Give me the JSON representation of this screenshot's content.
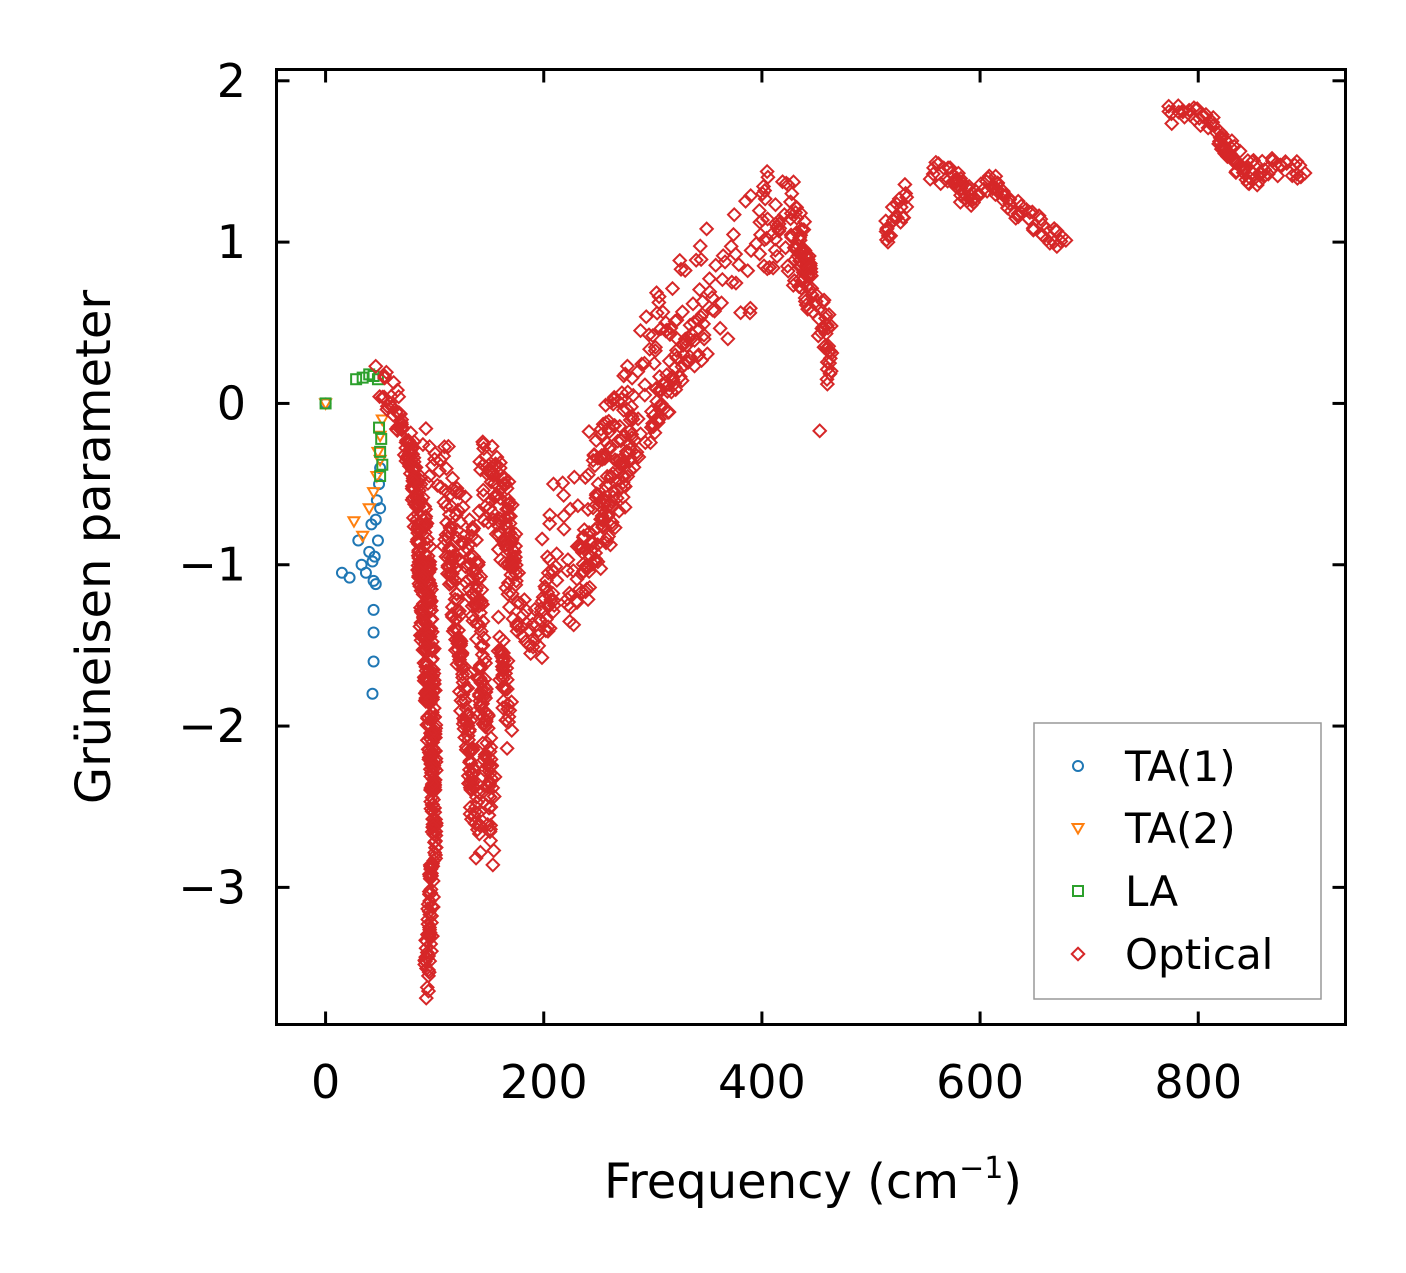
{
  "chart_data": {
    "type": "scatter",
    "title": "",
    "xlabel": "Frequency (cm",
    "xlabel_sup": "−1",
    "xlabel_end": ")",
    "ylabel": "Grüneisen parameter",
    "xlim": [
      -45,
      935
    ],
    "ylim": [
      -3.85,
      2.07
    ],
    "xticks": [
      0,
      200,
      400,
      600,
      800
    ],
    "xtick_labels": [
      "0",
      "200",
      "400",
      "600",
      "800"
    ],
    "yticks": [
      -3,
      -2,
      -1,
      0,
      1,
      2
    ],
    "ytick_labels": [
      "−3",
      "−2",
      "−1",
      "0",
      "1",
      "2"
    ],
    "legend_position": "lower-right",
    "series": [
      {
        "name": "TA(1)",
        "marker": "circle",
        "color": "#1f77b4",
        "points": [
          [
            0,
            0
          ],
          [
            15,
            -1.05
          ],
          [
            22,
            -1.08
          ],
          [
            30,
            -0.85
          ],
          [
            33,
            -1.0
          ],
          [
            37,
            -1.05
          ],
          [
            40,
            -0.92
          ],
          [
            42,
            -0.75
          ],
          [
            43,
            -0.98
          ],
          [
            44,
            -1.1
          ],
          [
            44,
            -1.28
          ],
          [
            44,
            -1.42
          ],
          [
            44,
            -1.6
          ],
          [
            43,
            -1.8
          ],
          [
            45,
            -0.95
          ],
          [
            46,
            -0.72
          ],
          [
            46,
            -1.12
          ],
          [
            47,
            -0.6
          ],
          [
            48,
            -0.85
          ],
          [
            49,
            -0.5
          ],
          [
            50,
            -0.4
          ],
          [
            50,
            -0.65
          ]
        ]
      },
      {
        "name": "TA(2)",
        "marker": "triangle-down",
        "color": "#ff7f0e",
        "points": [
          [
            0,
            0
          ],
          [
            26,
            -0.73
          ],
          [
            34,
            -0.82
          ],
          [
            40,
            -0.65
          ],
          [
            44,
            -0.55
          ],
          [
            47,
            -0.45
          ],
          [
            48,
            -0.3
          ],
          [
            50,
            -0.2
          ],
          [
            50,
            -0.35
          ],
          [
            52,
            -0.1
          ]
        ]
      },
      {
        "name": "LA",
        "marker": "square",
        "color": "#2ca02c",
        "points": [
          [
            0,
            0
          ],
          [
            28,
            0.15
          ],
          [
            34,
            0.16
          ],
          [
            40,
            0.18
          ],
          [
            44,
            0.17
          ],
          [
            48,
            0.15
          ],
          [
            49,
            -0.15
          ],
          [
            50,
            -0.3
          ],
          [
            50,
            -0.45
          ],
          [
            51,
            -0.22
          ],
          [
            52,
            -0.38
          ]
        ]
      },
      {
        "name": "Optical",
        "marker": "diamond",
        "color": "#d62728",
        "segments": [
          {
            "path": [
              [
                48,
                0.15
              ],
              [
                52,
                0.15
              ],
              [
                62,
                0.0
              ],
              [
                72,
                -0.18
              ],
              [
                82,
                -0.42
              ],
              [
                92,
                -0.8
              ],
              [
                97,
                -1.45
              ],
              [
                99,
                -2.1
              ],
              [
                99,
                -2.8
              ],
              [
                95,
                -3.3
              ],
              [
                92,
                -3.62
              ]
            ],
            "width": 0.12
          },
          {
            "path": [
              [
                75,
                -0.25
              ],
              [
                85,
                -0.8
              ],
              [
                90,
                -1.45
              ],
              [
                95,
                -2.0
              ],
              [
                100,
                -2.55
              ]
            ],
            "width": 0.14
          },
          {
            "path": [
              [
                90,
                -0.4
              ],
              [
                105,
                -0.45
              ],
              [
                118,
                -0.6
              ],
              [
                130,
                -0.85
              ],
              [
                140,
                -1.3
              ],
              [
                145,
                -1.9
              ],
              [
                150,
                -2.4
              ],
              [
                155,
                -2.65
              ]
            ],
            "width": 0.28
          },
          {
            "path": [
              [
                110,
                -0.7
              ],
              [
                120,
                -1.3
              ],
              [
                128,
                -1.9
              ],
              [
                135,
                -2.4
              ],
              [
                142,
                -2.7
              ]
            ],
            "width": 0.2
          },
          {
            "path": [
              [
                140,
                -0.5
              ],
              [
                150,
                -0.6
              ],
              [
                160,
                -0.75
              ],
              [
                170,
                -1.05
              ],
              [
                180,
                -1.3
              ],
              [
                195,
                -1.45
              ],
              [
                210,
                -1.05
              ]
            ],
            "width": 0.22
          },
          {
            "path": [
              [
                145,
                -0.3
              ],
              [
                155,
                -0.45
              ],
              [
                165,
                -0.6
              ],
              [
                175,
                -1.0
              ]
            ],
            "width": 0.15
          },
          {
            "path": [
              [
                160,
                -1.5
              ],
              [
                165,
                -1.8
              ],
              [
                170,
                -2.0
              ]
            ],
            "width": 0.2
          },
          {
            "path": [
              [
                200,
                -0.75
              ],
              [
                215,
                -0.8
              ],
              [
                225,
                -0.85
              ],
              [
                235,
                -0.9
              ],
              [
                250,
                -0.7
              ],
              [
                260,
                -0.5
              ],
              [
                270,
                -0.25
              ],
              [
                280,
                -0.05
              ],
              [
                290,
                0.1
              ],
              [
                305,
                0.3
              ],
              [
                320,
                0.45
              ],
              [
                335,
                0.58
              ],
              [
                350,
                0.7
              ],
              [
                365,
                0.8
              ],
              [
                375,
                0.85
              ],
              [
                385,
                0.9
              ],
              [
                395,
                0.95
              ]
            ],
            "width": 0.42
          },
          {
            "path": [
              [
                220,
                -1.2
              ],
              [
                235,
                -1.05
              ],
              [
                250,
                -0.8
              ],
              [
                262,
                -0.6
              ],
              [
                272,
                -0.45
              ],
              [
                282,
                -0.2
              ]
            ],
            "width": 0.25
          },
          {
            "path": [
              [
                240,
                -0.3
              ],
              [
                255,
                -0.2
              ],
              [
                262,
                -0.1
              ]
            ],
            "width": 0.18
          },
          {
            "path": [
              [
                300,
                -0.15
              ],
              [
                310,
                0.05
              ],
              [
                320,
                0.2
              ],
              [
                330,
                0.32
              ],
              [
                340,
                0.4
              ],
              [
                350,
                0.45
              ]
            ],
            "width": 0.18
          },
          {
            "path": [
              [
                398,
                1.1
              ],
              [
                405,
                1.22
              ],
              [
                412,
                1.26
              ],
              [
                420,
                1.25
              ],
              [
                428,
                1.18
              ],
              [
                435,
                1.05
              ],
              [
                440,
                0.9
              ]
            ],
            "width": 0.22
          },
          {
            "path": [
              [
                400,
                1.0
              ],
              [
                412,
                0.95
              ],
              [
                424,
                0.95
              ],
              [
                435,
                0.85
              ],
              [
                443,
                0.7
              ],
              [
                450,
                0.6
              ],
              [
                458,
                0.5
              ],
              [
                462,
                0.35
              ],
              [
                460,
                0.2
              ]
            ],
            "width": 0.17
          },
          {
            "path": [
              [
                430,
                0.95
              ],
              [
                440,
                0.85
              ],
              [
                447,
                0.7
              ]
            ],
            "width": 0.12
          },
          {
            "path": [
              [
                512,
                1.02
              ],
              [
                520,
                1.12
              ],
              [
                528,
                1.22
              ],
              [
                535,
                1.3
              ]
            ],
            "width": 0.1
          },
          {
            "path": [
              [
                555,
                1.44
              ],
              [
                570,
                1.43
              ],
              [
                582,
                1.38
              ],
              [
                592,
                1.33
              ],
              [
                603,
                1.35
              ],
              [
                618,
                1.3
              ],
              [
                632,
                1.2
              ],
              [
                648,
                1.12
              ],
              [
                662,
                1.05
              ],
              [
                680,
                0.99
              ]
            ],
            "width": 0.07
          },
          {
            "path": [
              [
                572,
                1.37
              ],
              [
                585,
                1.3
              ],
              [
                595,
                1.22
              ]
            ],
            "width": 0.08
          },
          {
            "path": [
              [
                610,
                1.36
              ],
              [
                622,
                1.33
              ]
            ],
            "width": 0.06
          },
          {
            "path": [
              [
                772,
                1.79
              ],
              [
                788,
                1.8
              ],
              [
                805,
                1.76
              ],
              [
                815,
                1.7
              ],
              [
                826,
                1.6
              ],
              [
                840,
                1.5
              ],
              [
                855,
                1.45
              ],
              [
                872,
                1.47
              ],
              [
                890,
                1.45
              ],
              [
                900,
                1.44
              ]
            ],
            "width": 0.06
          },
          {
            "path": [
              [
                820,
                1.58
              ],
              [
                835,
                1.45
              ],
              [
                848,
                1.4
              ],
              [
                860,
                1.4
              ]
            ],
            "width": 0.05
          }
        ],
        "outliers": [
          [
            453,
            -0.17
          ],
          [
            460,
            0.12
          ],
          [
            462,
            0.25
          ],
          [
            282,
            0.05
          ],
          [
            300,
            0.42
          ],
          [
            120,
            -0.55
          ],
          [
            145,
            -0.28
          ],
          [
            160,
            -0.4
          ],
          [
            105,
            -0.35
          ],
          [
            95,
            -0.45
          ],
          [
            188,
            -1.55
          ],
          [
            80,
            -0.48
          ],
          [
            90,
            -1.3
          ],
          [
            125,
            -1.55
          ]
        ]
      }
    ]
  }
}
